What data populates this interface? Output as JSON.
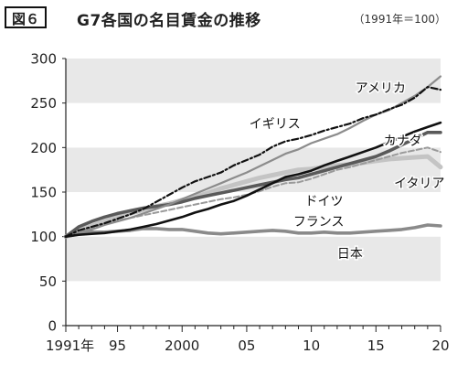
{
  "header": {
    "figure_label": "図６",
    "title": "G7各国の名目賃金の推移",
    "note": "（1991年＝100）"
  },
  "chart_data": {
    "type": "line",
    "x": [
      1991,
      1992,
      1993,
      1994,
      1995,
      1996,
      1997,
      1998,
      1999,
      2000,
      2001,
      2002,
      2003,
      2004,
      2005,
      2006,
      2007,
      2008,
      2009,
      2010,
      2011,
      2012,
      2013,
      2014,
      2015,
      2016,
      2017,
      2018,
      2019,
      2020
    ],
    "x_tick_values": [
      1991,
      1995,
      2000,
      2005,
      2010,
      2015,
      2020
    ],
    "x_tick_labels": [
      "1991年",
      "95",
      "2000",
      "05",
      "10",
      "15",
      "20"
    ],
    "xlim": [
      1991,
      2020
    ],
    "ylim": [
      0,
      300
    ],
    "y_ticks": [
      0,
      50,
      100,
      150,
      200,
      250,
      300
    ],
    "grid": "alternating horizontal bands",
    "legend": "inline labels",
    "series": [
      {
        "name": "アメリカ",
        "color": "#8c8c8c",
        "dash": "solid",
        "values": [
          100,
          104,
          108,
          113,
          117,
          121,
          126,
          131,
          136,
          142,
          148,
          154,
          160,
          166,
          172,
          179,
          186,
          193,
          198,
          205,
          210,
          215,
          222,
          230,
          237,
          242,
          250,
          258,
          268,
          280
        ]
      },
      {
        "name": "イギリス",
        "color": "#111111",
        "dash": "dashdot",
        "values": [
          100,
          107,
          111,
          115,
          120,
          125,
          131,
          139,
          147,
          155,
          162,
          167,
          172,
          180,
          186,
          192,
          201,
          207,
          210,
          214,
          219,
          223,
          227,
          233,
          237,
          243,
          248,
          256,
          268,
          265
        ]
      },
      {
        "name": "カナダ",
        "color": "#111111",
        "dash": "solid",
        "values": [
          100,
          102,
          103,
          104,
          106,
          108,
          111,
          114,
          118,
          122,
          127,
          131,
          136,
          140,
          146,
          153,
          160,
          167,
          170,
          174,
          180,
          185,
          190,
          195,
          200,
          206,
          212,
          218,
          223,
          228
        ]
      },
      {
        "name": "ドイツ",
        "color": "#9a9a9a",
        "dash": "dashed",
        "values": [
          100,
          105,
          110,
          114,
          118,
          121,
          124,
          127,
          130,
          133,
          136,
          139,
          142,
          144,
          147,
          151,
          156,
          160,
          161,
          165,
          170,
          175,
          178,
          182,
          186,
          190,
          194,
          197,
          200,
          195
        ]
      },
      {
        "name": "イタリア",
        "color": "#c4c4c4",
        "dash": "solid",
        "values": [
          100,
          106,
          112,
          117,
          122,
          126,
          130,
          134,
          137,
          141,
          145,
          149,
          154,
          158,
          162,
          166,
          169,
          172,
          175,
          176,
          178,
          180,
          181,
          183,
          185,
          187,
          188,
          189,
          190,
          178
        ]
      },
      {
        "name": "フランス",
        "color": "#5a5a5a",
        "dash": "solid",
        "values": [
          100,
          111,
          117,
          122,
          126,
          129,
          132,
          134,
          136,
          139,
          143,
          146,
          149,
          152,
          155,
          158,
          161,
          164,
          166,
          170,
          174,
          178,
          182,
          186,
          190,
          196,
          203,
          210,
          217,
          217
        ]
      },
      {
        "name": "日本",
        "color": "#8a8a8a",
        "dash": "solid",
        "values": [
          100,
          103,
          105,
          105,
          106,
          107,
          109,
          109,
          108,
          108,
          106,
          104,
          103,
          104,
          105,
          106,
          107,
          106,
          104,
          104,
          105,
          104,
          104,
          105,
          106,
          107,
          108,
          110,
          113,
          112
        ]
      }
    ]
  }
}
